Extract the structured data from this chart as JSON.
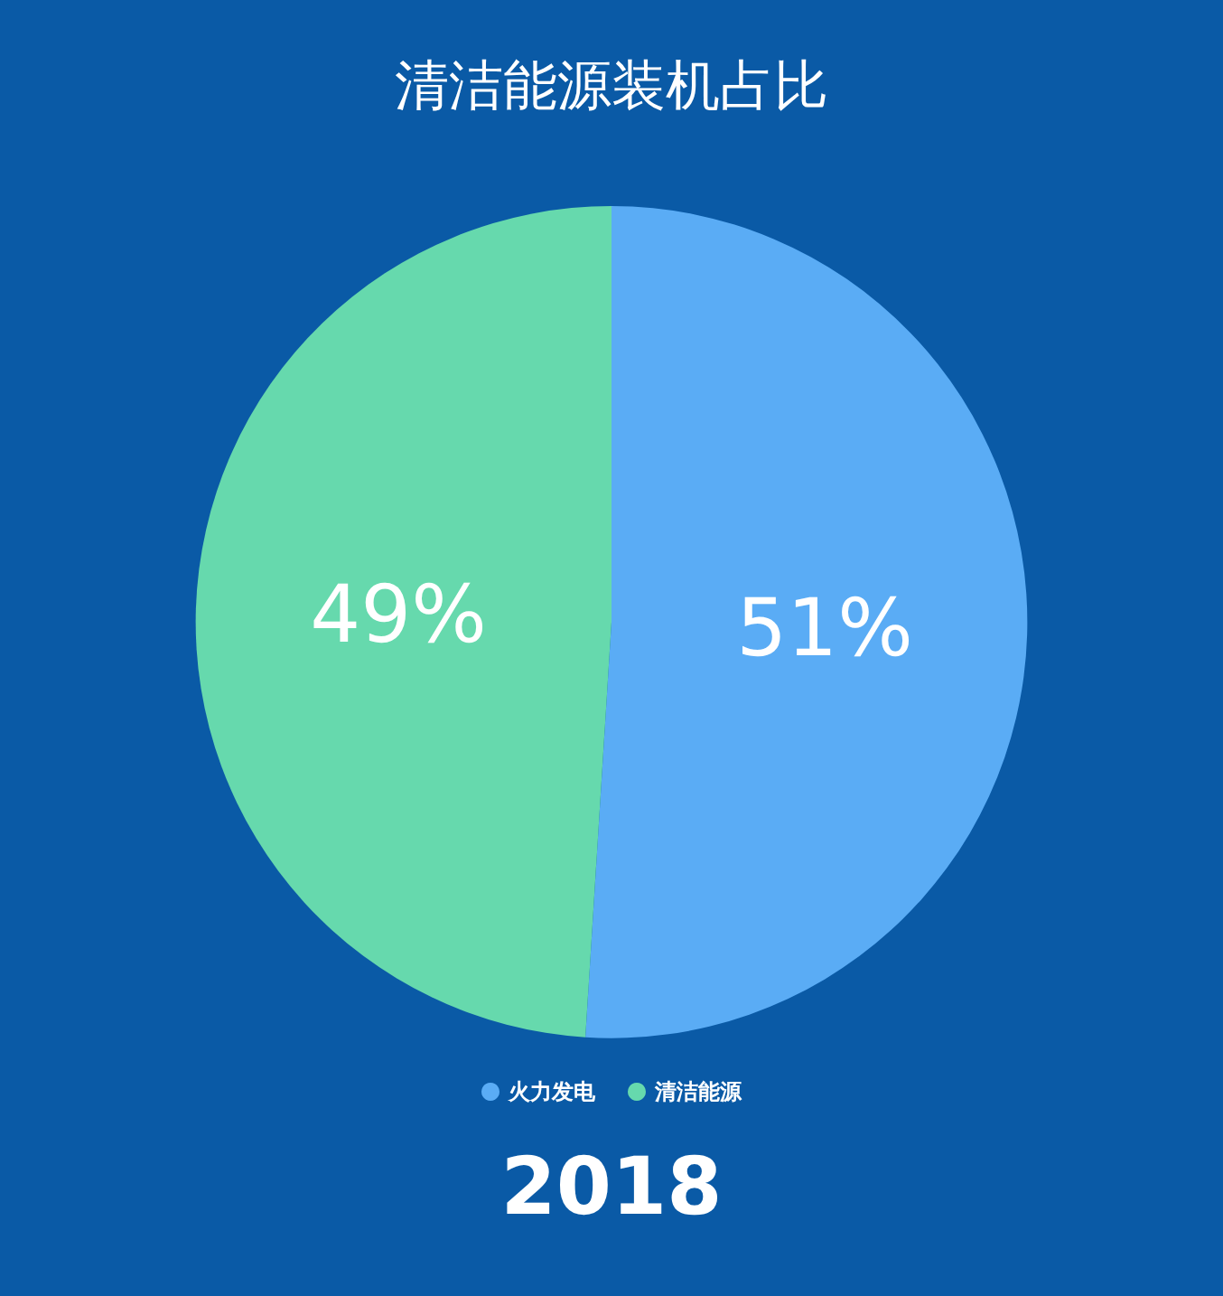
{
  "chart_data": {
    "type": "pie",
    "title": "清洁能源装机占比",
    "categories": [
      "火力发电",
      "清洁能源"
    ],
    "values": [
      51,
      49
    ],
    "colors": [
      "#5aacf5",
      "#66d9ad"
    ],
    "value_labels": [
      "51%",
      "49%"
    ],
    "legend": "bottom",
    "annotations": [
      "2018"
    ]
  }
}
